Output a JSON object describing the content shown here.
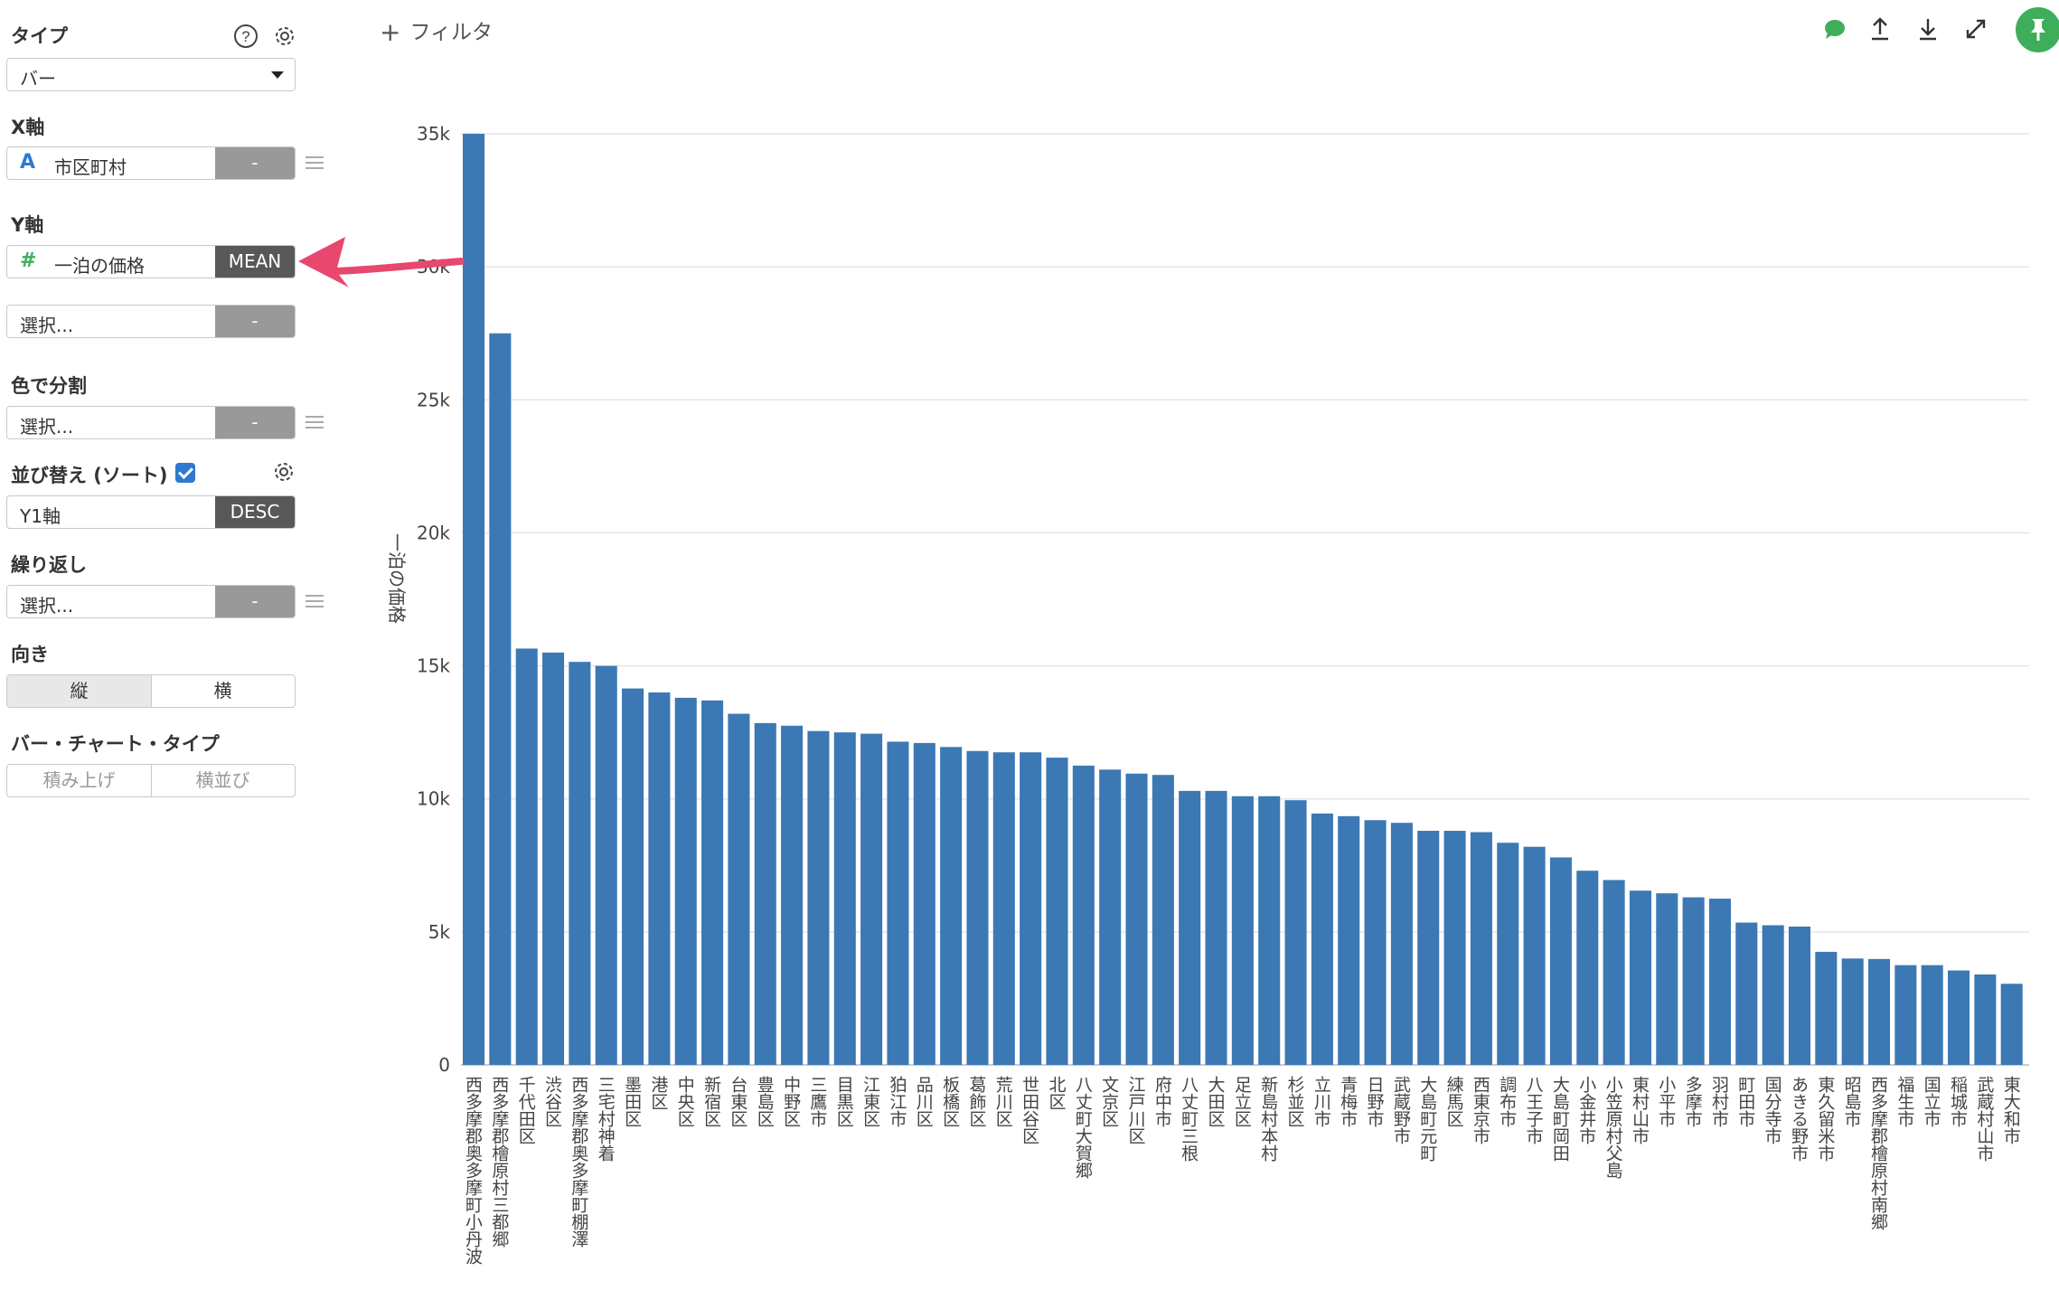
{
  "panel": {
    "type_title": "タイプ",
    "type_value": "バー",
    "x_title": "X軸",
    "x_field_icon": "A",
    "x_field": "市区町村",
    "x_agg": "-",
    "y_title": "Y軸",
    "y_field_icon": "#",
    "y_field": "一泊の価格",
    "y_agg": "MEAN",
    "y2_placeholder": "選択...",
    "y2_agg": "-",
    "color_title": "色で分割",
    "color_placeholder": "選択...",
    "color_agg": "-",
    "sort_title": "並び替え (ソート)",
    "sort_field": "Y1軸",
    "sort_order": "DESC",
    "repeat_title": "繰り返し",
    "repeat_placeholder": "選択...",
    "repeat_agg": "-",
    "orient_title": "向き",
    "orient_vertical": "縦",
    "orient_horizontal": "横",
    "bartype_title": "バー・チャート・タイプ",
    "bartype_stacked": "積み上げ",
    "bartype_grouped": "横並び"
  },
  "toolbar": {
    "filter_label": "フィルタ",
    "plus": "+",
    "icons": [
      "comment-icon",
      "upload-icon",
      "download-icon",
      "expand-icon",
      "pin-icon"
    ],
    "accent": "#3fae5b"
  },
  "colors": {
    "bar": "#3c78b4",
    "arrow": "#e8476e",
    "checkbox": "#2f79d0"
  },
  "chart_data": {
    "type": "bar",
    "ylabel": "一泊の価格",
    "ylim": [
      0,
      35000
    ],
    "yticks": [
      0,
      5000,
      10000,
      15000,
      20000,
      25000,
      30000,
      35000
    ],
    "ytick_labels": [
      "0",
      "5k",
      "10k",
      "15k",
      "20k",
      "25k",
      "30k",
      "35k"
    ],
    "grid": true,
    "categories": [
      "西多摩郡奥多摩町小丹波",
      "西多摩郡檜原村三都郷",
      "千代田区",
      "渋谷区",
      "西多摩郡奥多摩町棚澤",
      "三宅村神着",
      "墨田区",
      "港区",
      "中央区",
      "新宿区",
      "台東区",
      "豊島区",
      "中野区",
      "三鷹市",
      "目黒区",
      "江東区",
      "狛江市",
      "品川区",
      "板橋区",
      "葛飾区",
      "荒川区",
      "世田谷区",
      "北区",
      "八丈町大賀郷",
      "文京区",
      "江戸川区",
      "府中市",
      "八丈町三根",
      "大田区",
      "足立区",
      "新島村本村",
      "杉並区",
      "立川市",
      "青梅市",
      "日野市",
      "武蔵野市",
      "大島町元町",
      "練馬区",
      "西東京市",
      "調布市",
      "八王子市",
      "大島町岡田",
      "小金井市",
      "小笠原村父島",
      "東村山市",
      "小平市",
      "多摩市",
      "羽村市",
      "町田市",
      "国分寺市",
      "あきる野市",
      "東久留米市",
      "昭島市",
      "西多摩郡檜原村南郷",
      "福生市",
      "国立市",
      "稲城市",
      "武蔵村山市",
      "東大和市"
    ],
    "values": [
      35000,
      27500,
      15650,
      15500,
      15150,
      15000,
      14150,
      14000,
      13800,
      13700,
      13200,
      12850,
      12750,
      12550,
      12500,
      12450,
      12150,
      12100,
      11950,
      11800,
      11750,
      11750,
      11550,
      11250,
      11100,
      10950,
      10900,
      10300,
      10300,
      10100,
      10100,
      9950,
      9450,
      9350,
      9200,
      9100,
      8800,
      8800,
      8750,
      8350,
      8200,
      7800,
      7300,
      6950,
      6550,
      6450,
      6300,
      6250,
      5350,
      5250,
      5200,
      4250,
      4000,
      3980,
      3750,
      3750,
      3550,
      3400,
      3050
    ]
  }
}
